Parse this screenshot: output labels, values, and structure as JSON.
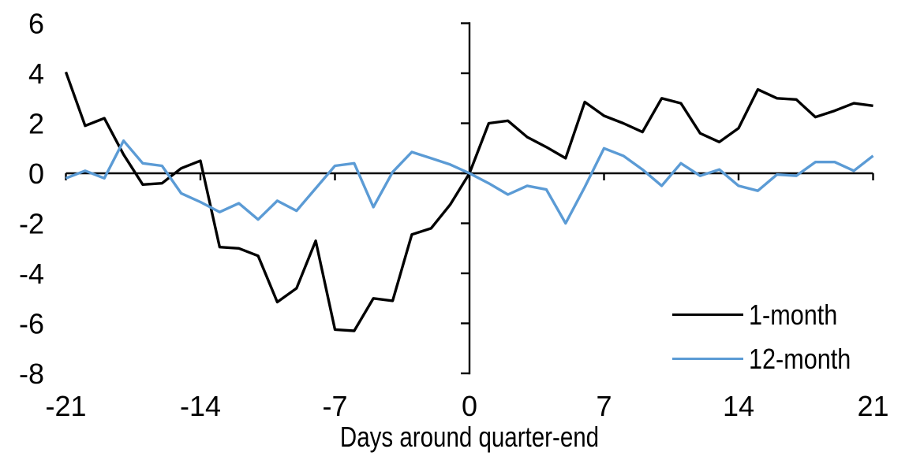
{
  "figure": {
    "background": "#FFFFFF",
    "text_color": "#000000"
  },
  "chart_data": {
    "type": "line",
    "title": "",
    "xlabel": "Days around quarter-end",
    "ylabel": "",
    "x": [
      -21,
      -20,
      -19,
      -18,
      -17,
      -16,
      -15,
      -14,
      -13,
      -12,
      -11,
      -10,
      -9,
      -8,
      -7,
      -6,
      -5,
      -4,
      -3,
      -2,
      -1,
      0,
      1,
      2,
      3,
      4,
      5,
      6,
      7,
      8,
      9,
      10,
      11,
      12,
      13,
      14,
      15,
      16,
      17,
      18,
      19,
      20,
      21
    ],
    "series": [
      {
        "name": "1-month",
        "color": "#000000",
        "values": [
          4.05,
          1.9,
          2.2,
          0.75,
          -0.45,
          -0.4,
          0.2,
          0.5,
          -2.95,
          -3.0,
          -3.3,
          -5.15,
          -4.6,
          -2.7,
          -6.25,
          -6.3,
          -5.0,
          -5.1,
          -2.45,
          -2.2,
          -1.25,
          0,
          2.0,
          2.1,
          1.45,
          1.05,
          0.6,
          2.85,
          2.3,
          2.0,
          1.65,
          3.0,
          2.8,
          1.6,
          1.25,
          1.8,
          3.35,
          3.0,
          2.95,
          2.25,
          2.5,
          2.8,
          2.7
        ]
      },
      {
        "name": "12-month",
        "color": "#5B9BD5",
        "values": [
          -0.2,
          0.1,
          -0.2,
          1.3,
          0.4,
          0.3,
          -0.8,
          -1.15,
          -1.55,
          -1.2,
          -1.85,
          -1.1,
          -1.5,
          -0.6,
          0.3,
          0.4,
          -1.35,
          0.05,
          0.85,
          0.6,
          0.35,
          0,
          -0.4,
          -0.85,
          -0.5,
          -0.65,
          -2.0,
          -0.55,
          1.0,
          0.7,
          0.15,
          -0.5,
          0.4,
          -0.1,
          0.15,
          -0.5,
          -0.7,
          -0.05,
          -0.1,
          0.45,
          0.45,
          0.1,
          0.7
        ]
      }
    ],
    "x_ticks": [
      -21,
      -14,
      -7,
      0,
      7,
      14,
      21
    ],
    "y_ticks": [
      6,
      4,
      2,
      0,
      -2,
      -4,
      -6,
      -8
    ],
    "xlim": [
      -21,
      21
    ],
    "ylim": [
      -8,
      6
    ],
    "grid": false,
    "legend_position": "lower-right",
    "axis_color": "#000000"
  }
}
